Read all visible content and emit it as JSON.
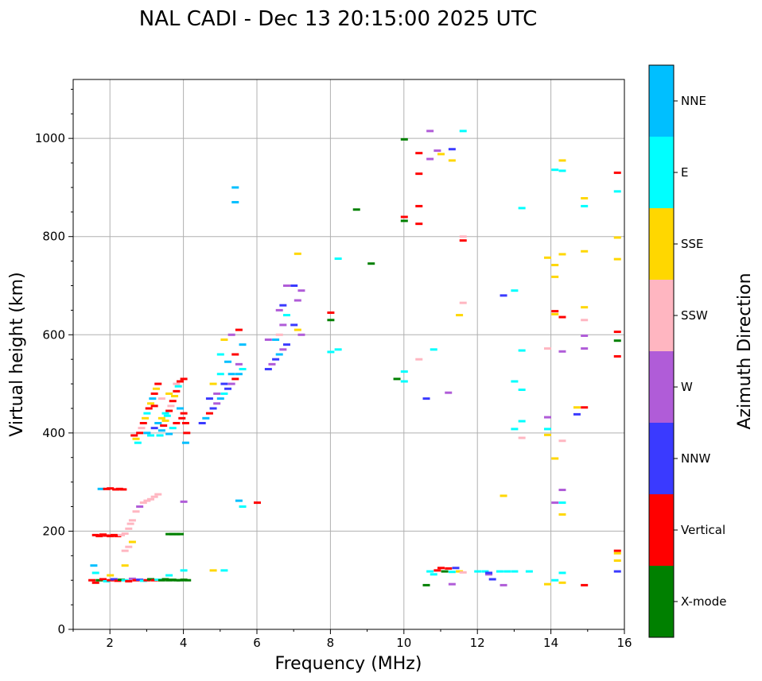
{
  "chart_data": {
    "type": "scatter",
    "title": "NAL CADI - Dec 13 20:15:00 2025 UTC",
    "xlabel": "Frequency (MHz)",
    "ylabel": "Virtual height (km)",
    "xlim": [
      1,
      16
    ],
    "ylim": [
      0,
      1120
    ],
    "xticks": [
      2,
      4,
      6,
      8,
      10,
      12,
      14,
      16
    ],
    "yticks": [
      0,
      200,
      400,
      600,
      800,
      1000
    ],
    "grid": true,
    "colorbar": {
      "label": "Azimuth Direction",
      "categories": [
        {
          "name": "X-mode",
          "color": "#008000"
        },
        {
          "name": "Vertical",
          "color": "#ff0000"
        },
        {
          "name": "NNW",
          "color": "#3a3aff"
        },
        {
          "name": "W",
          "color": "#b05cd8"
        },
        {
          "name": "SSW",
          "color": "#ffb6c1"
        },
        {
          "name": "SSE",
          "color": "#ffd700"
        },
        {
          "name": "E",
          "color": "#00ffff"
        },
        {
          "name": "NNE",
          "color": "#00bfff"
        }
      ]
    },
    "points_legend": "each point: [frequency MHz, virtual height km, category index]",
    "points": [
      [
        1.5,
        100,
        1
      ],
      [
        1.6,
        95,
        1
      ],
      [
        1.7,
        100,
        0
      ],
      [
        1.8,
        102,
        1
      ],
      [
        1.9,
        98,
        6
      ],
      [
        2.0,
        100,
        1
      ],
      [
        2.1,
        102,
        2
      ],
      [
        2.2,
        99,
        1
      ],
      [
        2.3,
        101,
        0
      ],
      [
        2.4,
        100,
        6
      ],
      [
        2.5,
        98,
        1
      ],
      [
        2.6,
        103,
        3
      ],
      [
        2.7,
        100,
        1
      ],
      [
        2.8,
        101,
        2
      ],
      [
        2.9,
        99,
        6
      ],
      [
        3.0,
        100,
        1
      ],
      [
        3.1,
        102,
        0
      ],
      [
        3.2,
        100,
        1
      ],
      [
        3.3,
        101,
        6
      ],
      [
        3.4,
        100,
        0
      ],
      [
        3.5,
        102,
        0
      ],
      [
        3.6,
        100,
        0
      ],
      [
        3.7,
        101,
        0
      ],
      [
        3.8,
        100,
        0
      ],
      [
        3.9,
        100,
        0
      ],
      [
        4.0,
        101,
        0
      ],
      [
        4.1,
        100,
        0
      ],
      [
        1.55,
        130,
        7
      ],
      [
        1.6,
        115,
        6
      ],
      [
        2.0,
        110,
        5
      ],
      [
        2.4,
        130,
        5
      ],
      [
        3.6,
        110,
        6
      ],
      [
        4.0,
        120,
        6
      ],
      [
        1.6,
        192,
        1
      ],
      [
        1.7,
        190,
        1
      ],
      [
        1.8,
        193,
        1
      ],
      [
        1.9,
        191,
        1
      ],
      [
        2.0,
        190,
        1
      ],
      [
        2.1,
        192,
        1
      ],
      [
        2.2,
        190,
        1
      ],
      [
        2.3,
        192,
        4
      ],
      [
        2.4,
        195,
        4
      ],
      [
        2.5,
        205,
        4
      ],
      [
        2.55,
        215,
        4
      ],
      [
        2.6,
        222,
        4
      ],
      [
        2.7,
        240,
        4
      ],
      [
        2.8,
        250,
        3
      ],
      [
        2.9,
        258,
        4
      ],
      [
        3.0,
        262,
        4
      ],
      [
        3.1,
        265,
        4
      ],
      [
        3.2,
        270,
        4
      ],
      [
        3.3,
        275,
        4
      ],
      [
        2.6,
        178,
        5
      ],
      [
        2.5,
        168,
        4
      ],
      [
        2.4,
        160,
        4
      ],
      [
        3.6,
        194,
        0
      ],
      [
        3.7,
        194,
        0
      ],
      [
        3.8,
        194,
        0
      ],
      [
        3.9,
        194,
        0
      ],
      [
        4.0,
        260,
        3
      ],
      [
        1.75,
        286,
        7
      ],
      [
        1.9,
        286,
        1
      ],
      [
        2.0,
        287,
        1
      ],
      [
        2.15,
        285,
        1
      ],
      [
        2.25,
        286,
        1
      ],
      [
        2.35,
        285,
        1
      ],
      [
        2.65,
        395,
        1
      ],
      [
        2.7,
        388,
        5
      ],
      [
        2.75,
        380,
        6
      ],
      [
        2.8,
        400,
        1
      ],
      [
        2.85,
        410,
        4
      ],
      [
        2.9,
        420,
        1
      ],
      [
        2.95,
        430,
        5
      ],
      [
        3.0,
        440,
        6
      ],
      [
        3.05,
        450,
        1
      ],
      [
        3.1,
        460,
        5
      ],
      [
        3.15,
        470,
        7
      ],
      [
        3.2,
        480,
        1
      ],
      [
        3.25,
        490,
        5
      ],
      [
        3.3,
        500,
        1
      ],
      [
        3.35,
        395,
        6
      ],
      [
        3.4,
        405,
        7
      ],
      [
        3.45,
        415,
        1
      ],
      [
        3.5,
        425,
        5
      ],
      [
        3.55,
        435,
        6
      ],
      [
        3.6,
        445,
        1
      ],
      [
        3.65,
        455,
        4
      ],
      [
        3.7,
        465,
        1
      ],
      [
        3.75,
        475,
        5
      ],
      [
        3.8,
        485,
        1
      ],
      [
        3.85,
        495,
        6
      ],
      [
        3.9,
        505,
        1
      ],
      [
        3.95,
        430,
        1
      ],
      [
        4.0,
        440,
        1
      ],
      [
        4.05,
        420,
        1
      ],
      [
        4.08,
        400,
        1
      ],
      [
        4.05,
        380,
        7
      ],
      [
        3.0,
        400,
        7
      ],
      [
        3.1,
        395,
        6
      ],
      [
        3.2,
        410,
        2
      ],
      [
        3.3,
        420,
        7
      ],
      [
        3.4,
        430,
        5
      ],
      [
        3.5,
        440,
        6
      ],
      [
        3.6,
        398,
        7
      ],
      [
        3.7,
        410,
        6
      ],
      [
        3.8,
        420,
        1
      ],
      [
        3.9,
        450,
        7
      ],
      [
        3.2,
        455,
        1
      ],
      [
        3.4,
        470,
        4
      ],
      [
        3.6,
        480,
        5
      ],
      [
        3.8,
        500,
        4
      ],
      [
        4.0,
        510,
        1
      ],
      [
        4.5,
        420,
        2
      ],
      [
        4.6,
        430,
        7
      ],
      [
        4.7,
        440,
        1
      ],
      [
        4.8,
        450,
        2
      ],
      [
        4.9,
        460,
        3
      ],
      [
        5.0,
        470,
        7
      ],
      [
        5.1,
        480,
        6
      ],
      [
        5.2,
        490,
        2
      ],
      [
        5.3,
        500,
        3
      ],
      [
        5.4,
        510,
        1
      ],
      [
        5.5,
        520,
        7
      ],
      [
        5.6,
        530,
        6
      ],
      [
        4.7,
        470,
        2
      ],
      [
        4.9,
        480,
        3
      ],
      [
        5.1,
        500,
        2
      ],
      [
        5.3,
        520,
        7
      ],
      [
        5.5,
        540,
        3
      ],
      [
        4.8,
        500,
        5
      ],
      [
        5.0,
        520,
        6
      ],
      [
        5.2,
        545,
        7
      ],
      [
        5.4,
        560,
        1
      ],
      [
        5.6,
        580,
        7
      ],
      [
        5.0,
        560,
        6
      ],
      [
        5.3,
        600,
        3
      ],
      [
        5.5,
        610,
        1
      ],
      [
        5.1,
        590,
        5
      ],
      [
        6.3,
        530,
        2
      ],
      [
        6.4,
        540,
        3
      ],
      [
        6.5,
        550,
        2
      ],
      [
        6.6,
        560,
        7
      ],
      [
        6.7,
        570,
        3
      ],
      [
        6.8,
        580,
        2
      ],
      [
        6.5,
        590,
        7
      ],
      [
        6.6,
        600,
        4
      ],
      [
        6.7,
        620,
        3
      ],
      [
        6.8,
        640,
        6
      ],
      [
        6.6,
        650,
        3
      ],
      [
        6.7,
        660,
        2
      ],
      [
        6.8,
        700,
        3
      ],
      [
        7.0,
        700,
        2
      ],
      [
        7.1,
        670,
        3
      ],
      [
        7.2,
        690,
        3
      ],
      [
        7.1,
        610,
        5
      ],
      [
        7.2,
        600,
        3
      ],
      [
        7.0,
        620,
        2
      ],
      [
        6.3,
        590,
        3
      ],
      [
        7.1,
        765,
        5
      ],
      [
        5.4,
        870,
        7
      ],
      [
        5.4,
        900,
        7
      ],
      [
        5.5,
        262,
        7
      ],
      [
        5.6,
        250,
        6
      ],
      [
        6.0,
        258,
        1
      ],
      [
        4.8,
        120,
        5
      ],
      [
        5.1,
        120,
        6
      ],
      [
        8.0,
        645,
        1
      ],
      [
        8.0,
        630,
        0
      ],
      [
        8.2,
        755,
        6
      ],
      [
        8.0,
        565,
        6
      ],
      [
        8.2,
        570,
        6
      ],
      [
        8.7,
        855,
        0
      ],
      [
        9.1,
        745,
        0
      ],
      [
        9.8,
        510,
        0
      ],
      [
        10.0,
        525,
        6
      ],
      [
        10.0,
        505,
        6
      ],
      [
        10.0,
        998,
        0
      ],
      [
        10.0,
        840,
        1
      ],
      [
        10.0,
        832,
        0
      ],
      [
        10.4,
        550,
        4
      ],
      [
        10.4,
        970,
        1
      ],
      [
        10.4,
        928,
        1
      ],
      [
        10.4,
        862,
        1
      ],
      [
        10.4,
        826,
        1
      ],
      [
        10.6,
        470,
        2
      ],
      [
        10.7,
        1015,
        3
      ],
      [
        10.7,
        958,
        3
      ],
      [
        10.8,
        570,
        6
      ],
      [
        10.9,
        975,
        3
      ],
      [
        11.0,
        968,
        5
      ],
      [
        11.2,
        482,
        3
      ],
      [
        11.3,
        978,
        2
      ],
      [
        11.3,
        955,
        5
      ],
      [
        11.5,
        640,
        5
      ],
      [
        11.6,
        665,
        4
      ],
      [
        11.6,
        1015,
        6
      ],
      [
        11.6,
        800,
        4
      ],
      [
        11.6,
        792,
        1
      ],
      [
        10.7,
        118,
        6
      ],
      [
        10.8,
        112,
        6
      ],
      [
        10.9,
        120,
        1
      ],
      [
        11.0,
        125,
        1
      ],
      [
        11.1,
        118,
        0
      ],
      [
        11.2,
        124,
        1
      ],
      [
        11.3,
        117,
        6
      ],
      [
        11.4,
        125,
        2
      ],
      [
        11.5,
        118,
        5
      ],
      [
        11.6,
        116,
        4
      ],
      [
        10.6,
        90,
        0
      ],
      [
        11.3,
        92,
        3
      ],
      [
        12.0,
        118,
        6
      ],
      [
        12.2,
        118,
        6
      ],
      [
        12.3,
        112,
        3
      ],
      [
        12.4,
        102,
        2
      ],
      [
        12.6,
        118,
        6
      ],
      [
        12.7,
        90,
        3
      ],
      [
        12.8,
        118,
        6
      ],
      [
        13.0,
        118,
        6
      ],
      [
        13.4,
        118,
        6
      ],
      [
        12.3,
        115,
        2
      ],
      [
        12.7,
        680,
        2
      ],
      [
        12.7,
        272,
        5
      ],
      [
        13.0,
        690,
        6
      ],
      [
        13.0,
        505,
        6
      ],
      [
        13.0,
        408,
        6
      ],
      [
        13.2,
        858,
        6
      ],
      [
        13.2,
        568,
        6
      ],
      [
        13.2,
        488,
        6
      ],
      [
        13.2,
        424,
        6
      ],
      [
        13.2,
        390,
        4
      ],
      [
        13.9,
        757,
        5
      ],
      [
        13.9,
        572,
        4
      ],
      [
        13.9,
        432,
        3
      ],
      [
        13.9,
        408,
        6
      ],
      [
        13.9,
        396,
        5
      ],
      [
        13.9,
        92,
        5
      ],
      [
        14.1,
        936,
        6
      ],
      [
        14.1,
        742,
        5
      ],
      [
        14.1,
        718,
        5
      ],
      [
        14.1,
        648,
        1
      ],
      [
        14.1,
        642,
        5
      ],
      [
        14.1,
        348,
        5
      ],
      [
        14.1,
        258,
        3
      ],
      [
        14.1,
        100,
        6
      ],
      [
        14.3,
        955,
        5
      ],
      [
        14.3,
        934,
        6
      ],
      [
        14.3,
        764,
        5
      ],
      [
        14.3,
        636,
        1
      ],
      [
        14.3,
        566,
        3
      ],
      [
        14.3,
        384,
        4
      ],
      [
        14.3,
        284,
        3
      ],
      [
        14.3,
        258,
        6
      ],
      [
        14.3,
        234,
        5
      ],
      [
        14.3,
        115,
        6
      ],
      [
        14.3,
        95,
        5
      ],
      [
        14.7,
        452,
        5
      ],
      [
        14.7,
        438,
        2
      ],
      [
        14.9,
        878,
        5
      ],
      [
        14.9,
        862,
        6
      ],
      [
        14.9,
        770,
        5
      ],
      [
        14.9,
        656,
        5
      ],
      [
        14.9,
        630,
        4
      ],
      [
        14.9,
        598,
        3
      ],
      [
        14.9,
        572,
        3
      ],
      [
        14.9,
        452,
        1
      ],
      [
        14.9,
        90,
        1
      ],
      [
        15.8,
        930,
        1
      ],
      [
        15.8,
        892,
        6
      ],
      [
        15.8,
        798,
        5
      ],
      [
        15.8,
        754,
        5
      ],
      [
        15.8,
        606,
        1
      ],
      [
        15.8,
        588,
        0
      ],
      [
        15.8,
        556,
        1
      ],
      [
        15.8,
        160,
        1
      ],
      [
        15.8,
        155,
        5
      ],
      [
        15.8,
        140,
        5
      ],
      [
        15.8,
        118,
        2
      ]
    ]
  }
}
